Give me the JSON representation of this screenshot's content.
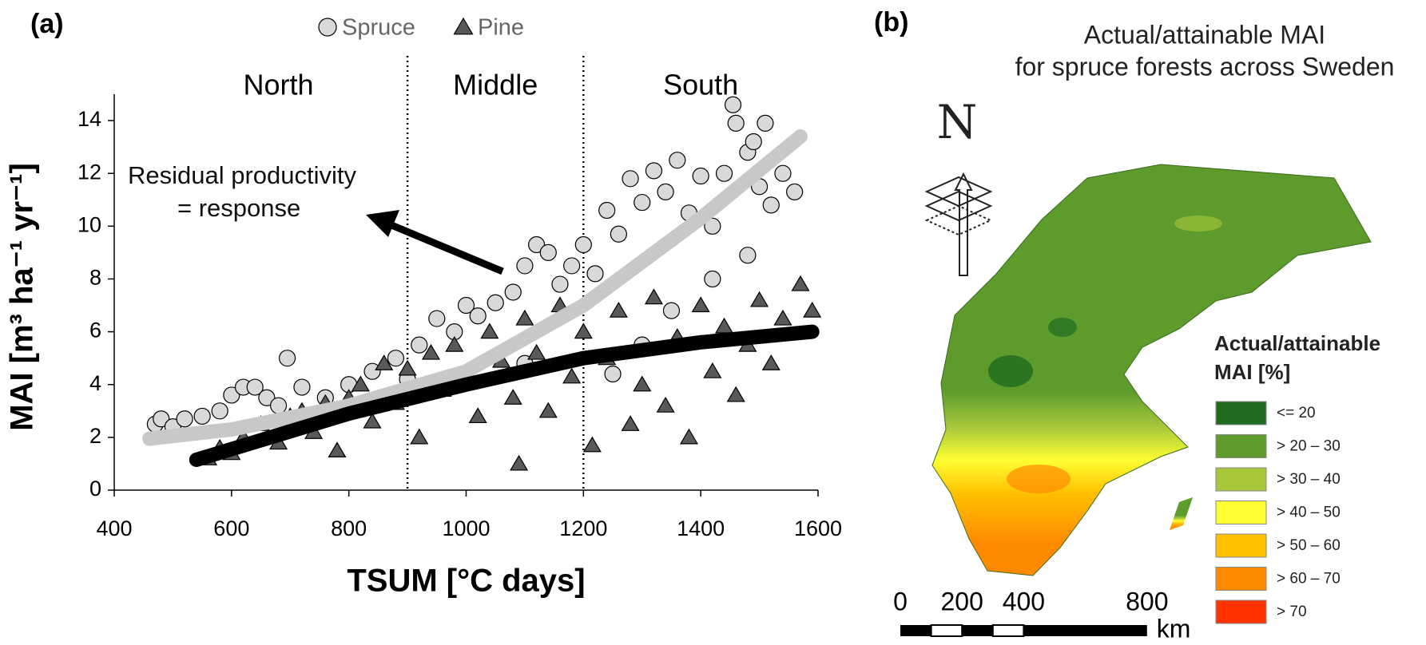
{
  "chart_data": [
    {
      "type": "scatter",
      "panel_label": "(a)",
      "x_label": "TSUM [°C days]",
      "y_label": "MAI [m³ ha⁻¹ yr⁻¹]",
      "xlim": [
        400,
        1600
      ],
      "xticks": [
        400,
        600,
        800,
        1000,
        1200,
        1400,
        1600
      ],
      "ylim": [
        0,
        15
      ],
      "yticks": [
        0,
        2,
        4,
        6,
        8,
        10,
        12,
        14
      ],
      "legend": "top",
      "regions": [
        "North",
        "Middle",
        "South"
      ],
      "region_boundaries": [
        900,
        1200
      ],
      "annotation": [
        "Residual productivity",
        "= response"
      ],
      "series": [
        {
          "name": "Spruce",
          "color": "#d9d9d9",
          "marker": "circle",
          "x": [
            470,
            480,
            500,
            520,
            550,
            580,
            600,
            620,
            640,
            660,
            680,
            695,
            720,
            760,
            800,
            840,
            880,
            920,
            950,
            980,
            1000,
            1020,
            1050,
            1080,
            1100,
            1120,
            1140,
            1160,
            1180,
            1200,
            1220,
            1240,
            1260,
            1280,
            1300,
            1320,
            1340,
            1360,
            1380,
            1400,
            1420,
            1440,
            1455,
            1460,
            1480,
            1490,
            1500,
            1510,
            1520,
            1540,
            1560,
            1250,
            1300,
            1350,
            1420,
            1480,
            900,
            1100
          ],
          "values": [
            2.5,
            2.7,
            2.4,
            2.7,
            2.8,
            3.0,
            3.6,
            3.9,
            3.9,
            3.5,
            3.2,
            5.0,
            3.9,
            3.5,
            4.0,
            4.5,
            5.0,
            5.5,
            6.5,
            6.0,
            7.0,
            6.6,
            7.1,
            7.5,
            8.5,
            9.3,
            9.0,
            7.8,
            8.5,
            9.3,
            8.2,
            10.6,
            9.7,
            11.8,
            10.9,
            12.1,
            11.3,
            12.5,
            10.5,
            11.9,
            10.0,
            12.0,
            14.6,
            13.9,
            12.8,
            13.2,
            11.5,
            13.9,
            10.8,
            12.0,
            11.3,
            4.4,
            5.5,
            6.8,
            8.0,
            8.9,
            4.2,
            4.8
          ],
          "trend": {
            "color": "#c8c8c8",
            "x": [
              460,
              600,
              800,
              1000,
              1200,
              1400,
              1570
            ],
            "values": [
              1.95,
              2.3,
              3.2,
              4.5,
              7.0,
              10.3,
              13.4
            ]
          }
        },
        {
          "name": "Pine",
          "color": "#595959",
          "marker": "triangle",
          "x": [
            560,
            580,
            600,
            620,
            650,
            680,
            700,
            720,
            740,
            760,
            780,
            800,
            820,
            840,
            860,
            880,
            900,
            920,
            940,
            960,
            980,
            1000,
            1020,
            1040,
            1060,
            1080,
            1090,
            1100,
            1120,
            1140,
            1160,
            1180,
            1200,
            1215,
            1240,
            1260,
            1280,
            1300,
            1320,
            1340,
            1360,
            1380,
            1400,
            1420,
            1440,
            1460,
            1480,
            1500,
            1520,
            1540,
            1570,
            1590
          ],
          "values": [
            1.2,
            1.6,
            1.4,
            2.0,
            2.5,
            1.8,
            2.8,
            3.0,
            2.2,
            3.3,
            1.5,
            3.5,
            4.0,
            2.6,
            4.8,
            3.3,
            4.6,
            2.0,
            5.2,
            3.8,
            5.5,
            4.3,
            2.8,
            6.0,
            4.9,
            3.5,
            1.0,
            6.5,
            5.2,
            3.0,
            7.0,
            4.3,
            6.0,
            1.7,
            5.0,
            6.8,
            2.5,
            4.0,
            7.3,
            3.2,
            5.8,
            2.0,
            7.0,
            4.5,
            6.2,
            3.6,
            5.5,
            7.2,
            4.8,
            6.5,
            7.8,
            6.8
          ],
          "trend": {
            "color": "#000000",
            "x": [
              540,
              800,
              1000,
              1200,
              1400,
              1590
            ],
            "values": [
              1.15,
              2.9,
              4.0,
              5.0,
              5.6,
              6.0
            ]
          }
        }
      ]
    },
    {
      "type": "map",
      "panel_label": "(b)",
      "title": [
        "Actual/attainable MAI",
        "for spruce forests across Sweden"
      ],
      "north_label": "N",
      "legend_title": [
        "Actual/attainable",
        "MAI [%]"
      ],
      "legend": [
        {
          "label": "<= 20",
          "color": "#1f6b1f"
        },
        {
          "label": "> 20 – 30",
          "color": "#5c9b2c"
        },
        {
          "label": "> 30 – 40",
          "color": "#a8c83c"
        },
        {
          "label": "> 40 – 50",
          "color": "#ffff33"
        },
        {
          "label": "> 50 – 60",
          "color": "#ffc000"
        },
        {
          "label": "> 60 – 70",
          "color": "#ff8a00"
        },
        {
          "label": "> 70",
          "color": "#ff3300"
        }
      ],
      "scale": {
        "ticks": [
          0,
          200,
          400,
          800
        ],
        "unit": "km"
      }
    }
  ]
}
